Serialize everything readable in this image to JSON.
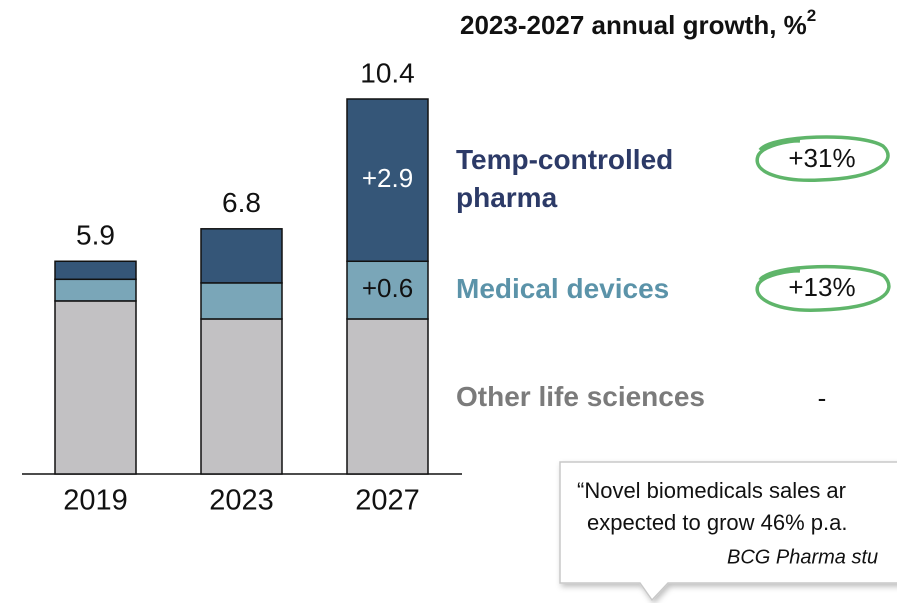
{
  "chart_data": {
    "type": "stacked-bar",
    "categories": [
      "2019",
      "2023",
      "2027"
    ],
    "series": [
      {
        "name": "Other life sciences",
        "color": "#c2c1c3",
        "label_color": "#7b7b7b",
        "values": [
          4.8,
          4.3,
          4.3
        ],
        "growth": "-"
      },
      {
        "name": "Medical devices",
        "color": "#7aa6b8",
        "label_color": "#5b93a9",
        "values": [
          0.6,
          1.0,
          1.6
        ],
        "growth": "+13%"
      },
      {
        "name": "Temp-controlled pharma",
        "color": "#355678",
        "label_color": "#2c3a67",
        "values": [
          0.5,
          1.5,
          4.5
        ],
        "growth": "+31%"
      }
    ],
    "totals": [
      5.9,
      6.8,
      10.4
    ],
    "segment_annotations": [
      {
        "series": 2,
        "category": 2,
        "text": "+2.9"
      },
      {
        "series": 1,
        "category": 2,
        "text": "+0.6"
      }
    ],
    "ylim": [
      0,
      10.4
    ],
    "growth_title": "2023-2027 annual growth, %",
    "growth_title_footnote": "2",
    "quote": {
      "lines": [
        "“Novel biomedicals sales ar",
        "expected to grow 46% p.a."
      ],
      "source": "BCG Pharma stu"
    }
  }
}
